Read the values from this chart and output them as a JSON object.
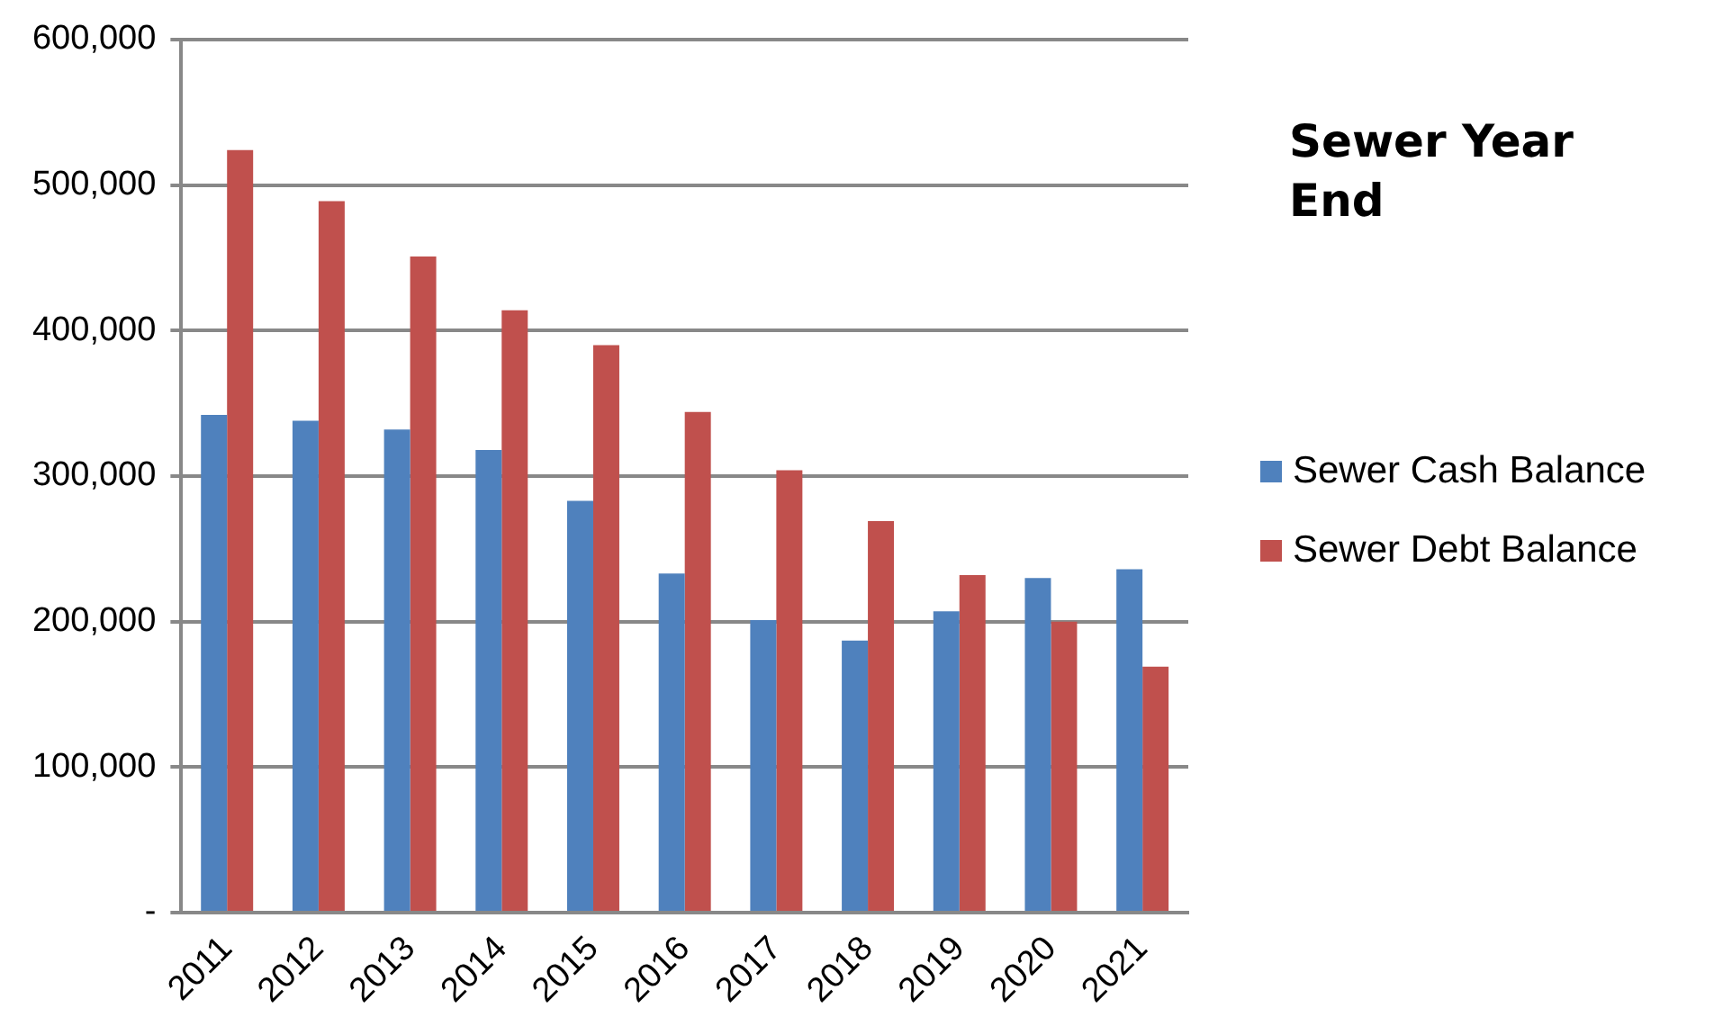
{
  "chart_data": {
    "type": "bar",
    "title": "Sewer Year End",
    "categories": [
      "2011",
      "2012",
      "2013",
      "2014",
      "2015",
      "2016",
      "2017",
      "2018",
      "2019",
      "2020",
      "2021"
    ],
    "series": [
      {
        "name": "Sewer Cash Balance",
        "color": "#4f81bd",
        "values": [
          342000,
          338000,
          332000,
          318000,
          283000,
          233000,
          201000,
          187000,
          207000,
          230000,
          236000
        ]
      },
      {
        "name": "Sewer Debt Balance",
        "color": "#c0504d",
        "values": [
          524000,
          489000,
          451000,
          414000,
          390000,
          344000,
          304000,
          269000,
          232000,
          200000,
          169000
        ]
      }
    ],
    "ylim": [
      0,
      600000
    ],
    "yticks": [
      {
        "value": 0,
        "label": "-"
      },
      {
        "value": 100000,
        "label": "100,000"
      },
      {
        "value": 200000,
        "label": "200,000"
      },
      {
        "value": 300000,
        "label": "300,000"
      },
      {
        "value": 400000,
        "label": "400,000"
      },
      {
        "value": 500000,
        "label": "500,000"
      },
      {
        "value": 600000,
        "label": "600,000"
      }
    ],
    "grid": "y",
    "legend": "right"
  }
}
